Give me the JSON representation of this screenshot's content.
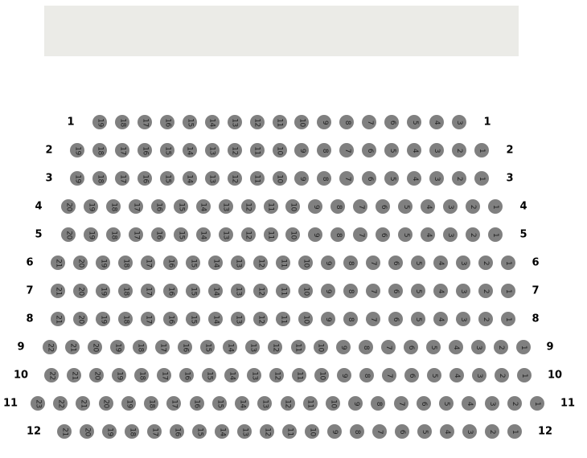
{
  "stage": {
    "color": "#ebebe7"
  },
  "seat_color": "#808080",
  "rows": [
    {
      "label": "1",
      "seats": [
        19,
        18,
        17,
        16,
        15,
        14,
        13,
        12,
        11,
        10,
        9,
        8,
        7,
        6,
        5,
        4,
        3
      ]
    },
    {
      "label": "2",
      "seats": [
        19,
        18,
        17,
        16,
        15,
        14,
        13,
        12,
        11,
        10,
        9,
        8,
        7,
        6,
        5,
        4,
        3,
        2,
        1
      ]
    },
    {
      "label": "3",
      "seats": [
        19,
        18,
        17,
        16,
        15,
        14,
        13,
        12,
        11,
        10,
        9,
        8,
        7,
        6,
        5,
        4,
        3,
        2,
        1
      ]
    },
    {
      "label": "4",
      "seats": [
        20,
        19,
        18,
        17,
        16,
        15,
        14,
        13,
        12,
        11,
        10,
        9,
        8,
        7,
        6,
        5,
        4,
        3,
        2,
        1
      ]
    },
    {
      "label": "5",
      "seats": [
        20,
        19,
        18,
        17,
        16,
        15,
        14,
        13,
        12,
        11,
        10,
        9,
        8,
        7,
        6,
        5,
        4,
        3,
        2,
        1
      ]
    },
    {
      "label": "6",
      "seats": [
        21,
        20,
        19,
        18,
        17,
        16,
        15,
        14,
        13,
        12,
        11,
        10,
        9,
        8,
        7,
        6,
        5,
        4,
        3,
        2,
        1
      ]
    },
    {
      "label": "7",
      "seats": [
        21,
        20,
        19,
        18,
        17,
        16,
        15,
        14,
        13,
        12,
        11,
        10,
        9,
        8,
        7,
        6,
        5,
        4,
        3,
        2,
        1
      ]
    },
    {
      "label": "8",
      "seats": [
        21,
        20,
        19,
        18,
        17,
        16,
        15,
        14,
        13,
        12,
        11,
        10,
        9,
        8,
        7,
        6,
        5,
        4,
        3,
        2,
        1
      ]
    },
    {
      "label": "9",
      "seats": [
        22,
        21,
        20,
        19,
        18,
        17,
        16,
        15,
        14,
        13,
        12,
        11,
        10,
        9,
        8,
        7,
        6,
        5,
        4,
        3,
        2,
        1
      ]
    },
    {
      "label": "10",
      "seats": [
        22,
        21,
        20,
        19,
        18,
        17,
        16,
        15,
        14,
        13,
        12,
        11,
        10,
        9,
        8,
        7,
        6,
        5,
        4,
        3,
        2,
        1
      ]
    },
    {
      "label": "11",
      "seats": [
        23,
        22,
        21,
        20,
        19,
        18,
        17,
        16,
        15,
        14,
        13,
        12,
        11,
        10,
        9,
        8,
        7,
        6,
        5,
        4,
        3,
        2,
        1
      ]
    },
    {
      "label": "12",
      "seats": [
        21,
        20,
        19,
        18,
        17,
        16,
        15,
        14,
        13,
        12,
        11,
        10,
        9,
        8,
        7,
        6,
        5,
        4,
        3,
        2,
        1
      ]
    }
  ]
}
